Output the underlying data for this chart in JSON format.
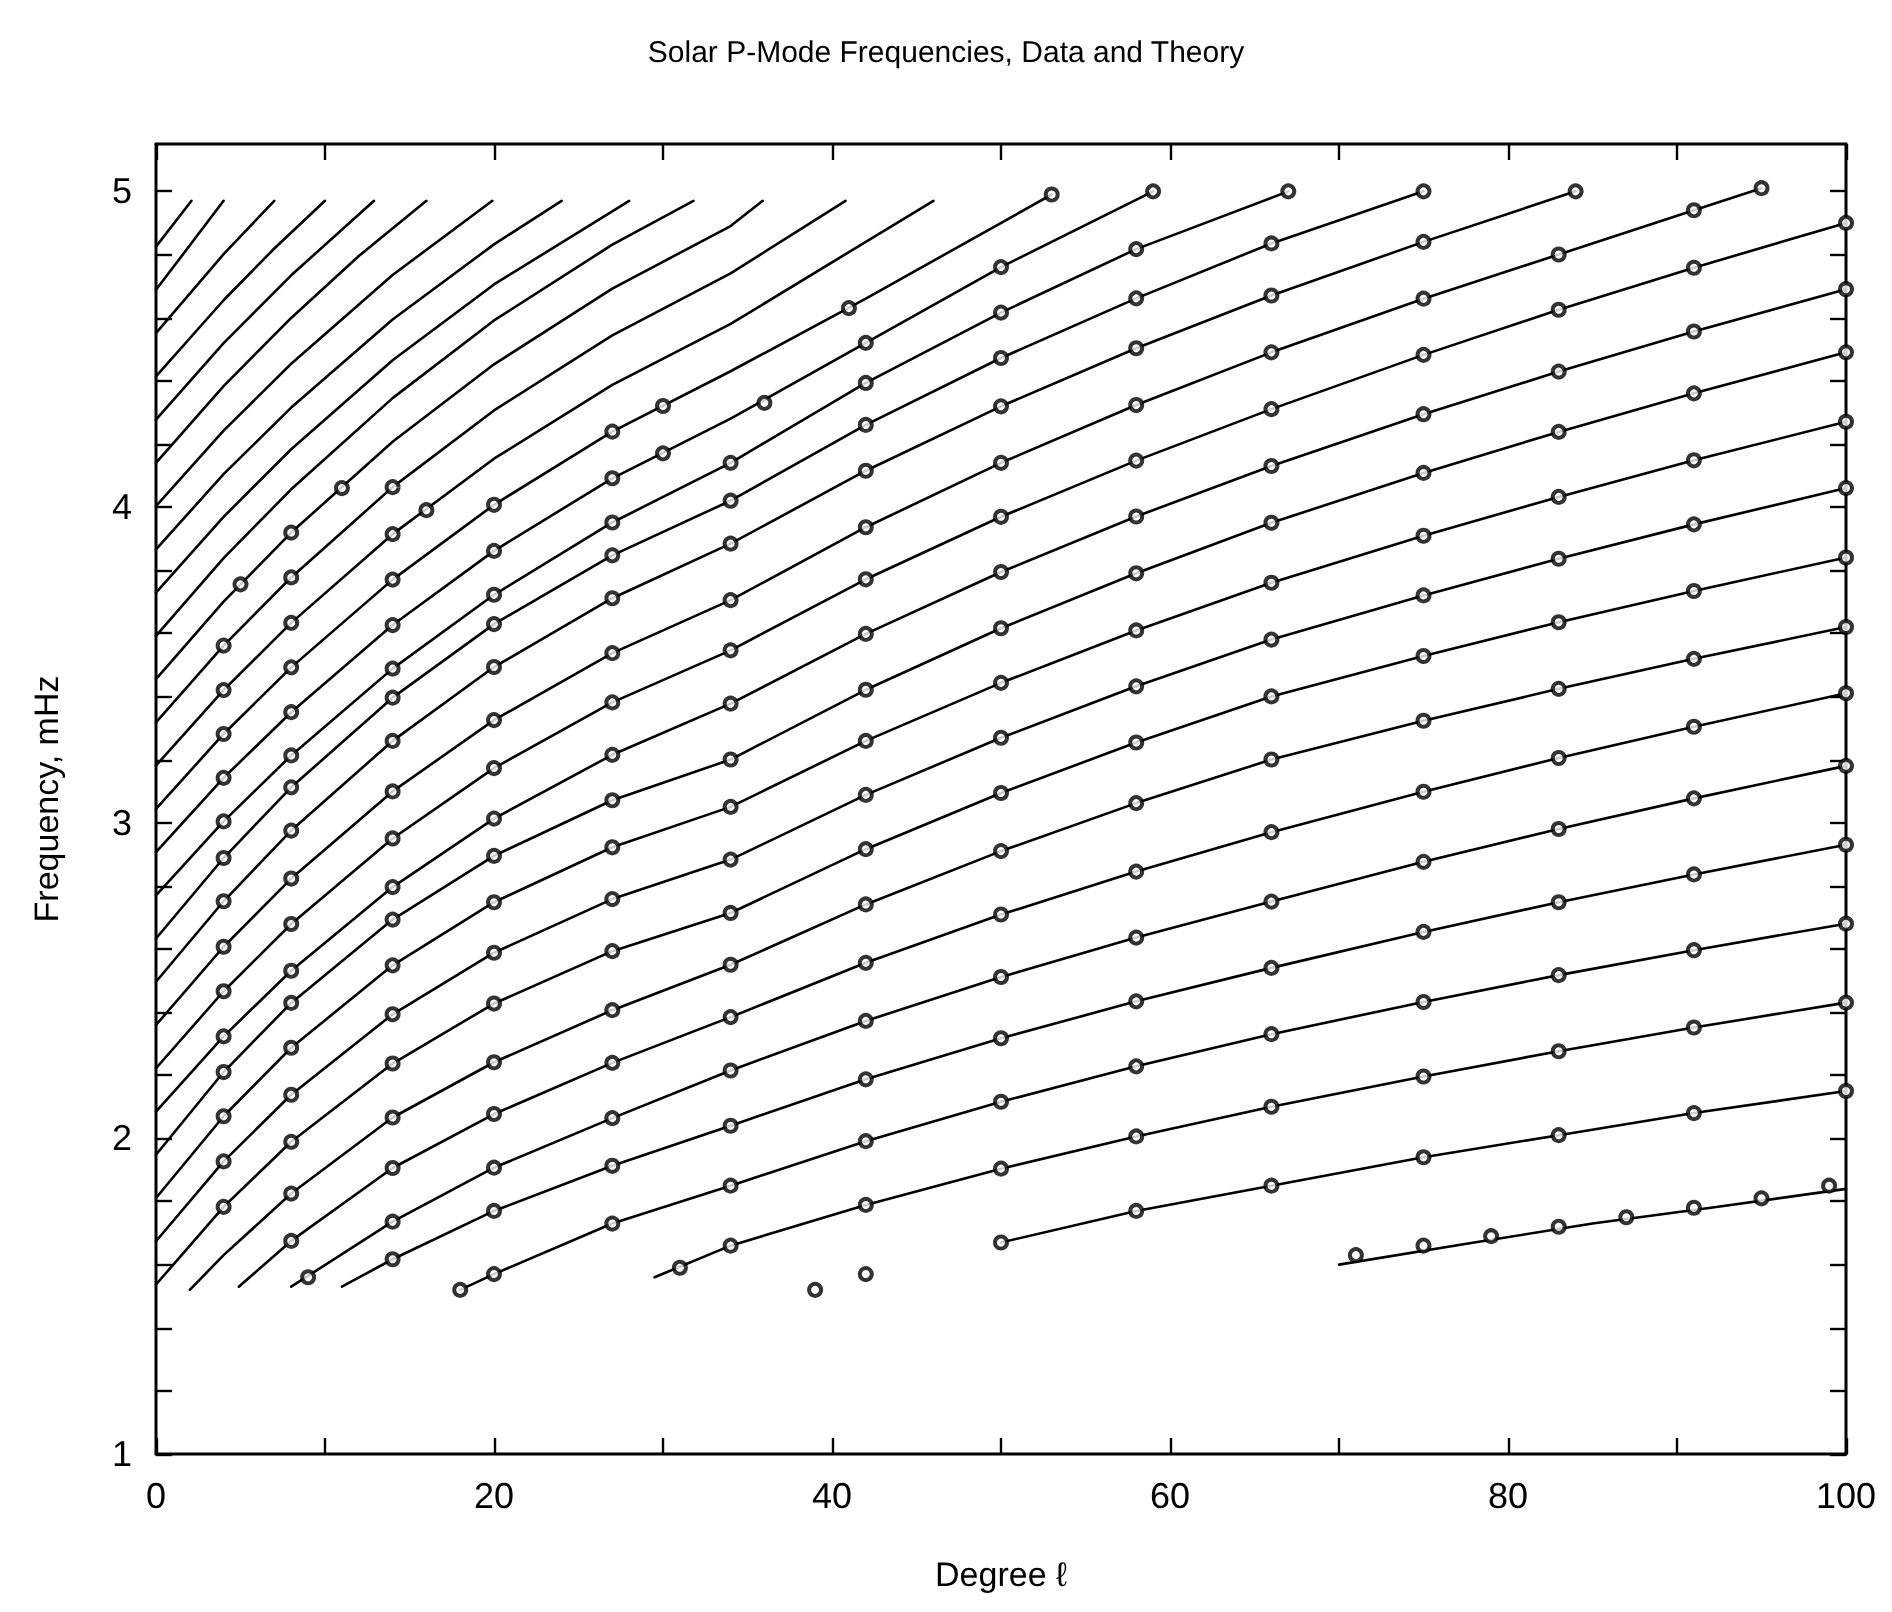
{
  "chart_data": {
    "type": "line",
    "title": "Solar P-Mode Frequencies, Data and Theory",
    "xlabel": "Degree ℓ",
    "ylabel": "Frequency, mHz",
    "xlim": [
      0,
      100
    ],
    "ylim": [
      1,
      5.15
    ],
    "xticks": [
      0,
      {
        "value": 10,
        "label": null
      },
      20,
      {
        "value": 30,
        "label": null
      },
      40,
      {
        "value": 50,
        "label": null
      },
      60,
      {
        "value": 70,
        "label": null
      },
      80,
      {
        "value": 90,
        "label": null
      },
      100
    ],
    "yticks": [
      1,
      {
        "value": 1.2,
        "label": null
      },
      {
        "value": 1.4,
        "label": null
      },
      {
        "value": 1.6,
        "label": null
      },
      {
        "value": 1.8,
        "label": null
      },
      2,
      {
        "value": 2.2,
        "label": null
      },
      {
        "value": 2.4,
        "label": null
      },
      {
        "value": 2.6,
        "label": null
      },
      {
        "value": 2.8,
        "label": null
      },
      3,
      {
        "value": 3.2,
        "label": null
      },
      {
        "value": 3.4,
        "label": null
      },
      {
        "value": 3.6,
        "label": null
      },
      {
        "value": 3.8,
        "label": null
      },
      4,
      {
        "value": 4.2,
        "label": null
      },
      {
        "value": 4.4,
        "label": null
      },
      {
        "value": 4.6,
        "label": null
      },
      {
        "value": 4.8,
        "label": null
      },
      5
    ],
    "marker": "none",
    "line_style": "solid",
    "series": [
      {
        "color": "#000000",
        "x": [
          70,
          78,
          85,
          92,
          100
        ],
        "values": [
          1.6,
          1.67,
          1.73,
          1.78,
          1.84
        ]
      },
      {
        "color": "#000000",
        "x": [
          50,
          58,
          66,
          75,
          83,
          91,
          100
        ],
        "values": [
          1.67,
          1.77,
          1.85,
          1.94,
          2.01,
          2.08,
          2.15
        ]
      },
      {
        "color": "#000000",
        "x": [
          29.5,
          34,
          42,
          50,
          58,
          66,
          75,
          83,
          91,
          100
        ],
        "values": [
          1.56,
          1.66,
          1.789,
          1.904,
          2.006,
          2.1,
          2.196,
          2.276,
          2.351,
          2.43
        ]
      },
      {
        "color": "#000000",
        "x": [
          18,
          20,
          27,
          34,
          42,
          50,
          58,
          66,
          75,
          83,
          91,
          100
        ],
        "values": [
          1.52,
          1.57,
          1.73,
          1.85,
          1.991,
          2.116,
          2.228,
          2.33,
          2.432,
          2.517,
          2.596,
          2.68
        ]
      },
      {
        "color": "#000000",
        "x": [
          11,
          14,
          20,
          27,
          34,
          42,
          50,
          58,
          66,
          75,
          83,
          91,
          100
        ],
        "values": [
          1.53,
          1.617,
          1.77,
          1.913,
          2.04,
          2.187,
          2.317,
          2.434,
          2.54,
          2.654,
          2.748,
          2.836,
          2.93
        ]
      },
      {
        "color": "#000000",
        "x": [
          8,
          14,
          20,
          27,
          34,
          42,
          50,
          58,
          66,
          75,
          83,
          91,
          100
        ],
        "values": [
          1.53,
          1.736,
          1.907,
          2.064,
          2.215,
          2.372,
          2.511,
          2.636,
          2.75,
          2.876,
          2.98,
          3.077,
          3.18
        ]
      },
      {
        "color": "#000000",
        "x": [
          4.9,
          8,
          14,
          20,
          27,
          34,
          42,
          50,
          58,
          66,
          75,
          83,
          91,
          100
        ],
        "values": [
          1.53,
          1.675,
          1.906,
          2.077,
          2.239,
          2.384,
          2.556,
          2.709,
          2.845,
          2.97,
          3.098,
          3.205,
          3.304,
          3.41
        ]
      },
      {
        "color": "#000000",
        "x": [
          2,
          4,
          8,
          14,
          20,
          27,
          34,
          42,
          50,
          58,
          66,
          75,
          83,
          91,
          100
        ],
        "values": [
          1.52,
          1.63,
          1.825,
          2.066,
          2.241,
          2.406,
          2.55,
          2.741,
          2.91,
          3.062,
          3.2,
          3.323,
          3.424,
          3.519,
          3.62
        ]
      },
      {
        "color": "#000000",
        "x": [
          0,
          4,
          8,
          14,
          20,
          27,
          34,
          42,
          50,
          58,
          66,
          75,
          83,
          91,
          100
        ],
        "values": [
          1.537,
          1.783,
          1.989,
          2.237,
          2.427,
          2.593,
          2.714,
          2.916,
          3.094,
          3.254,
          3.4,
          3.528,
          3.635,
          3.734,
          3.84
        ]
      },
      {
        "color": "#000000",
        "x": [
          0,
          4,
          8,
          14,
          20,
          27,
          34,
          42,
          50,
          58,
          66,
          75,
          83,
          91,
          100
        ],
        "values": [
          1.674,
          1.927,
          2.138,
          2.393,
          2.588,
          2.758,
          2.883,
          3.088,
          3.269,
          3.432,
          3.58,
          3.72,
          3.836,
          3.945,
          4.06
        ]
      },
      {
        "color": "#000000",
        "x": [
          0,
          4,
          8,
          14,
          20,
          27,
          34,
          42,
          50,
          58,
          66,
          75,
          83,
          91,
          100
        ],
        "values": [
          1.811,
          2.07,
          2.287,
          2.548,
          2.748,
          2.922,
          3.05,
          3.259,
          3.443,
          3.609,
          3.76,
          3.909,
          4.032,
          4.148,
          4.27
        ]
      },
      {
        "color": "#000000",
        "x": [
          0,
          4,
          8,
          14,
          20,
          27,
          34,
          42,
          50,
          58,
          66,
          75,
          83,
          91,
          100
        ],
        "values": [
          1.948,
          2.21,
          2.429,
          2.693,
          2.895,
          3.071,
          3.2,
          3.421,
          3.616,
          3.79,
          3.95,
          4.108,
          4.238,
          4.36,
          4.49
        ]
      },
      {
        "color": "#000000",
        "x": [
          0,
          4,
          8,
          14,
          20,
          27,
          34,
          42,
          50,
          58,
          66,
          75,
          83,
          91,
          100
        ],
        "values": [
          2.085,
          2.323,
          2.531,
          2.796,
          3.013,
          3.215,
          3.377,
          3.598,
          3.794,
          3.97,
          4.13,
          4.294,
          4.429,
          4.556,
          4.69
        ]
      },
      {
        "color": "#000000",
        "x": [
          0,
          4,
          8,
          14,
          20,
          27,
          34,
          42,
          50,
          58,
          66,
          75,
          83,
          91,
          100
        ],
        "values": [
          2.222,
          2.466,
          2.679,
          2.95,
          3.173,
          3.381,
          3.546,
          3.771,
          3.969,
          4.147,
          4.31,
          4.482,
          4.625,
          4.758,
          4.9
        ]
      },
      {
        "color": "#000000",
        "x": [
          0,
          4,
          8,
          14,
          20,
          27,
          34,
          42,
          50,
          58,
          66,
          75,
          83,
          91,
          95
        ],
        "values": [
          2.359,
          2.607,
          2.823,
          3.099,
          3.325,
          3.537,
          3.705,
          3.936,
          4.14,
          4.323,
          4.49,
          4.66,
          4.8,
          4.94,
          5.01
        ]
      },
      {
        "color": "#000000",
        "x": [
          0,
          4,
          8,
          14,
          20,
          27,
          34,
          42,
          50,
          58,
          66,
          75,
          84
        ],
        "values": [
          2.496,
          2.751,
          2.975,
          3.259,
          3.493,
          3.711,
          3.884,
          4.115,
          4.319,
          4.503,
          4.67,
          4.84,
          5.0
        ]
      },
      {
        "color": "#000000",
        "x": [
          0,
          4,
          8,
          14,
          20,
          27,
          34,
          42,
          50,
          58,
          66,
          75
        ],
        "values": [
          2.633,
          2.888,
          3.112,
          3.396,
          3.629,
          3.847,
          4.02,
          4.26,
          4.472,
          4.661,
          4.835,
          5.0
        ]
      },
      {
        "color": "#000000",
        "x": [
          0,
          4,
          8,
          14,
          20,
          27,
          34,
          42,
          50,
          58,
          67
        ],
        "values": [
          2.77,
          3.004,
          3.213,
          3.488,
          3.722,
          3.951,
          4.14,
          4.393,
          4.616,
          4.817,
          5.0
        ]
      },
      {
        "color": "#000000",
        "x": [
          0,
          4,
          8,
          14,
          20,
          27,
          34,
          42,
          50,
          59
        ],
        "values": [
          2.907,
          3.142,
          3.35,
          3.626,
          3.861,
          4.091,
          4.28,
          4.52,
          4.76,
          5.0
        ]
      },
      {
        "color": "#000000",
        "x": [
          0,
          4,
          8,
          14,
          20,
          27,
          34,
          42,
          53
        ],
        "values": [
          3.044,
          3.281,
          3.492,
          3.77,
          4.007,
          4.239,
          4.43,
          4.66,
          4.99
        ]
      },
      {
        "color": "#000000",
        "x": [
          0,
          4,
          8,
          14,
          20,
          27,
          34,
          46
        ],
        "values": [
          3.181,
          3.42,
          3.633,
          3.914,
          4.153,
          4.387,
          4.58,
          4.97
        ]
      },
      {
        "color": "#000000",
        "x": [
          0,
          4,
          8,
          14,
          20,
          27,
          34,
          40.8
        ],
        "values": [
          3.318,
          3.561,
          3.777,
          4.063,
          4.306,
          4.544,
          4.74,
          4.97
        ]
      },
      {
        "color": "#000000",
        "x": [
          0,
          4,
          8,
          14,
          20,
          27,
          34,
          35.9
        ],
        "values": [
          3.455,
          3.7,
          3.919,
          4.207,
          4.452,
          4.692,
          4.89,
          4.97
        ]
      },
      {
        "color": "#000000",
        "x": [
          0,
          4,
          8,
          14,
          20,
          27,
          31.8
        ],
        "values": [
          3.592,
          3.838,
          4.056,
          4.345,
          4.591,
          4.831,
          4.97
        ]
      },
      {
        "color": "#000000",
        "x": [
          0,
          4,
          8,
          14,
          20,
          28
        ],
        "values": [
          3.729,
          3.969,
          4.183,
          4.465,
          4.705,
          4.97
        ]
      },
      {
        "color": "#000000",
        "x": [
          0,
          4,
          8,
          14,
          20,
          24
        ],
        "values": [
          3.866,
          4.104,
          4.315,
          4.594,
          4.832,
          4.97
        ]
      },
      {
        "color": "#000000",
        "x": [
          0,
          4,
          8,
          14,
          19.9
        ],
        "values": [
          4.003,
          4.242,
          4.454,
          4.735,
          4.97
        ]
      },
      {
        "color": "#000000",
        "x": [
          0,
          4,
          8,
          12,
          16
        ],
        "values": [
          4.14,
          4.383,
          4.599,
          4.795,
          4.97
        ]
      },
      {
        "color": "#000000",
        "x": [
          0,
          4,
          8,
          12.9
        ],
        "values": [
          4.277,
          4.519,
          4.734,
          4.97
        ]
      },
      {
        "color": "#000000",
        "x": [
          0,
          4,
          7,
          10
        ],
        "values": [
          4.414,
          4.655,
          4.819,
          4.97
        ]
      },
      {
        "color": "#000000",
        "x": [
          0,
          4,
          7
        ],
        "values": [
          4.551,
          4.801,
          4.97
        ]
      },
      {
        "color": "#000000",
        "x": [
          0,
          4
        ],
        "values": [
          4.688,
          4.97
        ]
      },
      {
        "color": "#000000",
        "x": [
          0,
          2.1
        ],
        "values": [
          4.825,
          4.97
        ]
      },
      {
        "type": "scatter",
        "marker": "circle",
        "color": "#000000",
        "x": [
          71,
          75,
          79,
          83,
          87,
          91,
          95,
          99,
          39,
          42,
          50,
          58,
          66,
          75,
          83,
          91,
          100,
          31,
          34,
          42,
          50,
          58,
          66,
          75,
          83,
          91,
          100,
          18,
          20,
          27,
          34,
          42,
          50,
          58,
          66,
          75,
          83,
          91,
          100,
          14,
          20,
          27,
          34,
          42,
          50,
          58,
          66,
          75,
          83,
          91,
          100,
          9,
          14,
          20,
          27,
          34,
          42,
          50,
          58,
          66,
          75,
          83,
          91,
          100,
          8,
          14,
          20,
          27,
          34,
          42,
          50,
          58,
          66,
          75,
          83,
          91,
          100,
          8,
          14,
          20,
          27,
          34,
          42,
          50,
          58,
          66,
          75,
          83,
          91,
          100,
          4,
          8,
          14,
          20,
          27,
          34,
          42,
          50,
          58,
          66,
          75,
          83,
          91,
          100,
          4,
          8,
          14,
          20,
          27,
          34,
          42,
          50,
          58,
          66,
          75,
          83,
          91,
          100,
          4,
          8,
          14,
          20,
          27,
          34,
          42,
          50,
          58,
          66,
          75,
          83,
          91,
          100,
          4,
          8,
          14,
          20,
          27,
          34,
          42,
          50,
          58,
          66,
          75,
          83,
          91,
          100,
          4,
          8,
          14,
          20,
          27,
          34,
          42,
          50,
          58,
          66,
          75,
          83,
          91,
          100,
          4,
          8,
          14,
          20,
          27,
          34,
          42,
          50,
          58,
          66,
          75,
          83,
          91,
          100,
          4,
          8,
          14,
          20,
          27,
          34,
          42,
          50,
          58,
          66,
          75,
          83,
          91,
          95,
          4,
          8,
          14,
          20,
          27,
          34,
          42,
          50,
          58,
          66,
          75,
          84,
          4,
          8,
          14,
          20,
          27,
          34,
          42,
          50,
          58,
          66,
          75,
          4,
          8,
          14,
          20,
          27,
          34,
          42,
          50,
          58,
          67,
          4,
          8,
          14,
          20,
          27,
          30,
          36,
          42,
          50,
          59,
          4,
          8,
          14,
          20,
          27,
          30,
          41,
          53,
          4,
          8,
          14,
          16,
          4,
          8,
          14,
          5,
          8,
          11
        ],
        "values": [
          1.63,
          1.66,
          1.69,
          1.72,
          1.75,
          1.78,
          1.81,
          1.85,
          1.52,
          1.57,
          1.67,
          1.77,
          1.85,
          1.94,
          2.01,
          2.08,
          2.15,
          1.59,
          1.66,
          1.789,
          1.904,
          2.006,
          2.1,
          2.196,
          2.276,
          2.351,
          2.43,
          1.52,
          1.57,
          1.73,
          1.85,
          1.991,
          2.116,
          2.228,
          2.33,
          2.432,
          2.517,
          2.596,
          2.68,
          1.617,
          1.77,
          1.913,
          2.04,
          2.187,
          2.317,
          2.434,
          2.54,
          2.654,
          2.748,
          2.836,
          2.93,
          1.56,
          1.736,
          1.907,
          2.064,
          2.215,
          2.372,
          2.511,
          2.636,
          2.75,
          2.876,
          2.98,
          3.077,
          3.18,
          1.675,
          1.906,
          2.077,
          2.239,
          2.384,
          2.556,
          2.709,
          2.845,
          2.97,
          3.098,
          3.205,
          3.304,
          3.41,
          1.825,
          2.066,
          2.241,
          2.406,
          2.55,
          2.741,
          2.91,
          3.062,
          3.2,
          3.323,
          3.424,
          3.519,
          3.62,
          1.783,
          1.989,
          2.237,
          2.427,
          2.593,
          2.714,
          2.916,
          3.094,
          3.254,
          3.4,
          3.528,
          3.635,
          3.734,
          3.84,
          1.927,
          2.138,
          2.393,
          2.588,
          2.758,
          2.883,
          3.088,
          3.269,
          3.432,
          3.58,
          3.72,
          3.836,
          3.945,
          4.06,
          2.07,
          2.287,
          2.548,
          2.748,
          2.922,
          3.05,
          3.259,
          3.443,
          3.609,
          3.76,
          3.909,
          4.032,
          4.148,
          4.27,
          2.21,
          2.429,
          2.693,
          2.895,
          3.071,
          3.2,
          3.421,
          3.616,
          3.79,
          3.95,
          4.108,
          4.238,
          4.36,
          4.49,
          2.323,
          2.531,
          2.796,
          3.013,
          3.215,
          3.377,
          3.598,
          3.794,
          3.97,
          4.13,
          4.294,
          4.429,
          4.556,
          4.69,
          2.466,
          2.679,
          2.95,
          3.173,
          3.381,
          3.546,
          3.771,
          3.969,
          4.147,
          4.31,
          4.482,
          4.625,
          4.758,
          4.9,
          2.607,
          2.823,
          3.099,
          3.325,
          3.537,
          3.705,
          3.936,
          4.14,
          4.323,
          4.49,
          4.66,
          4.8,
          4.94,
          5.01,
          2.751,
          2.975,
          3.259,
          3.493,
          3.711,
          3.884,
          4.115,
          4.319,
          4.503,
          4.67,
          4.84,
          5.0,
          2.888,
          3.112,
          3.396,
          3.629,
          3.847,
          4.02,
          4.26,
          4.472,
          4.661,
          4.835,
          5.0,
          3.004,
          3.213,
          3.488,
          3.722,
          3.951,
          4.14,
          4.393,
          4.616,
          4.817,
          5.0,
          3.142,
          3.35,
          3.626,
          3.861,
          4.091,
          4.17,
          4.33,
          4.52,
          4.76,
          5.0,
          3.281,
          3.492,
          3.77,
          4.007,
          4.239,
          4.32,
          4.63,
          4.99,
          3.42,
          3.633,
          3.914,
          3.99,
          3.561,
          3.777,
          4.063,
          3.755,
          3.919,
          4.06
        ]
      }
    ]
  }
}
